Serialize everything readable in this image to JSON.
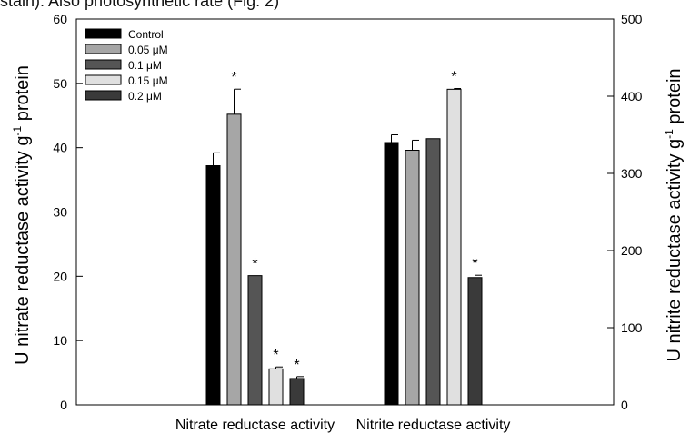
{
  "caption_fragment": "stain). Also photosynthetic rate (Fig. 2)",
  "chart_data": {
    "type": "bar",
    "categories": [
      "Nitrate reductase activity",
      "Nitrite reductase activity"
    ],
    "series": [
      {
        "name": "Control",
        "color": "#000000",
        "values": [
          37.2,
          340
        ],
        "errors": [
          2.0,
          10
        ],
        "significant": [
          false,
          false
        ]
      },
      {
        "name": "0.05 μM",
        "color": "#a6a6a6",
        "values": [
          45.2,
          330
        ],
        "errors": [
          3.9,
          13
        ],
        "significant": [
          true,
          false
        ]
      },
      {
        "name": "0.1 μM",
        "color": "#555555",
        "values": [
          20.1,
          345
        ],
        "errors": [
          0,
          0
        ],
        "significant": [
          true,
          false
        ]
      },
      {
        "name": "0.15 μM",
        "color": "#e0e0e0",
        "values": [
          5.6,
          409
        ],
        "errors": [
          0.3,
          1
        ],
        "significant": [
          true,
          true
        ]
      },
      {
        "name": "0.2 μM",
        "color": "#3a3a3a",
        "values": [
          4.1,
          165
        ],
        "errors": [
          0.3,
          3
        ],
        "significant": [
          true,
          true
        ]
      }
    ],
    "series_axis": [
      "left",
      "right"
    ],
    "ylabel": "U nitrate reductase activity g",
    "ylabel_sup": "-1",
    "ylabel_tail": "protein",
    "y2label": "U nitrite reductase activity g",
    "y2label_sup": "-1",
    "y2label_tail": "protein",
    "ylim": [
      0,
      60
    ],
    "y2lim": [
      0,
      500
    ],
    "yticks": [
      "0",
      "10",
      "20",
      "30",
      "40",
      "50",
      "60"
    ],
    "y2ticks": [
      "0",
      "100",
      "200",
      "300",
      "400",
      "500"
    ],
    "significance_marker": "*",
    "legend_position": "top-left"
  }
}
